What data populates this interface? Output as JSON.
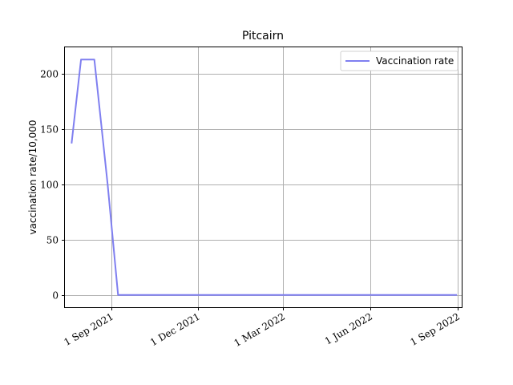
{
  "chart_data": {
    "type": "line",
    "title": "Pitcairn",
    "xlabel": "",
    "ylabel": "vaccination rate/10,000",
    "x_tick_labels": [
      {
        "date": "2021-09-01",
        "label": "1 Sep 2021"
      },
      {
        "date": "2021-12-01",
        "label": "1 Dec 2021"
      },
      {
        "date": "2022-03-01",
        "label": "1 Mar 2022"
      },
      {
        "date": "2022-06-01",
        "label": "1 Jun 2022"
      },
      {
        "date": "2022-09-01",
        "label": "1 Sep 2022"
      }
    ],
    "y_ticks": [
      0,
      50,
      100,
      150,
      200
    ],
    "xlim": [
      "2021-07-14",
      "2022-09-05"
    ],
    "ylim": [
      -11,
      224
    ],
    "grid": true,
    "legend_position": "top-right",
    "series": [
      {
        "name": "Vaccination rate",
        "color": "#7f7ff0",
        "points": [
          {
            "x": "2021-07-21",
            "y": 137
          },
          {
            "x": "2021-07-31",
            "y": 213
          },
          {
            "x": "2021-08-14",
            "y": 213
          },
          {
            "x": "2021-08-28",
            "y": 100
          },
          {
            "x": "2021-09-08",
            "y": 0
          },
          {
            "x": "2022-08-31",
            "y": 0
          }
        ]
      }
    ]
  }
}
